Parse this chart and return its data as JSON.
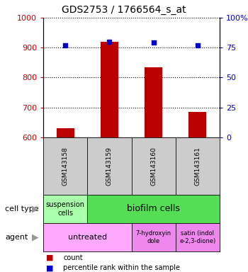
{
  "title": "GDS2753 / 1766564_s_at",
  "samples": [
    "GSM143158",
    "GSM143159",
    "GSM143160",
    "GSM143161"
  ],
  "bar_values": [
    630,
    920,
    835,
    685
  ],
  "percentile_values": [
    77,
    80,
    79,
    77
  ],
  "bar_color": "#bb0000",
  "dot_color": "#0000cc",
  "ylim_left": [
    600,
    1000
  ],
  "ylim_right": [
    0,
    100
  ],
  "yticks_left": [
    600,
    700,
    800,
    900,
    1000
  ],
  "yticks_right": [
    0,
    25,
    50,
    75,
    100
  ],
  "right_tick_labels": [
    "0",
    "25",
    "50",
    "75",
    "100%"
  ],
  "cell_type_row": {
    "label": "cell type",
    "cells": [
      {
        "text": "suspension\ncells",
        "color": "#aaffaa",
        "span": 1
      },
      {
        "text": "biofilm cells",
        "color": "#55dd55",
        "span": 3
      }
    ]
  },
  "agent_row": {
    "label": "agent",
    "cells": [
      {
        "text": "untreated",
        "color": "#ffaaff",
        "span": 2
      },
      {
        "text": "7-hydroxyin\ndole",
        "color": "#ee88ee",
        "span": 1
      },
      {
        "text": "satin (indol\ne-2,3-dione)",
        "color": "#ee88ee",
        "span": 1
      }
    ]
  },
  "legend_items": [
    {
      "color": "#bb0000",
      "label": "count"
    },
    {
      "color": "#0000cc",
      "label": "percentile rank within the sample"
    }
  ],
  "left_tick_color": "#cc0000",
  "right_tick_color": "#0000cc",
  "sample_box_color": "#cccccc",
  "bar_width": 0.4
}
